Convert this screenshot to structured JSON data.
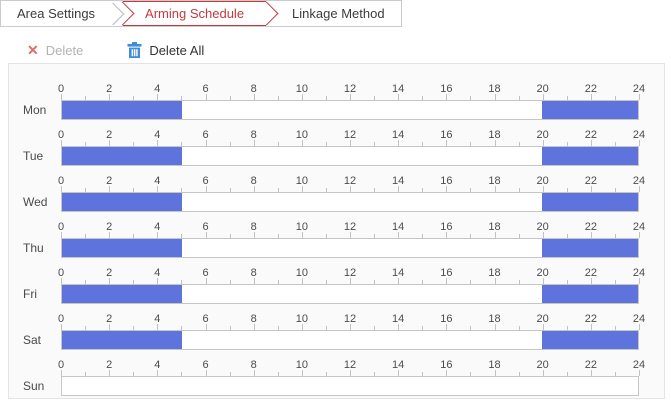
{
  "tabs": {
    "items": [
      {
        "label": "Area Settings",
        "active": false
      },
      {
        "label": "Arming Schedule",
        "active": true
      },
      {
        "label": "Linkage Method",
        "active": false
      }
    ]
  },
  "toolbar": {
    "delete": {
      "label": "Delete",
      "enabled": false
    },
    "delete_all": {
      "label": "Delete All",
      "enabled": true
    }
  },
  "icons": {
    "delete_x": "✕",
    "delete_all_trash": "trash-can"
  },
  "colors": {
    "accent_red": "#c5383e",
    "segment_blue": "#5f73dc",
    "trash_blue": "#3f8ed5",
    "disabled_text": "#b3b3b3"
  },
  "schedule": {
    "hours_total": 24,
    "labeled_hours": [
      0,
      2,
      4,
      6,
      8,
      10,
      12,
      14,
      16,
      18,
      20,
      22,
      24
    ],
    "days": [
      {
        "label": "Mon",
        "segments": [
          [
            0,
            5
          ],
          [
            20,
            24
          ]
        ]
      },
      {
        "label": "Tue",
        "segments": [
          [
            0,
            5
          ],
          [
            20,
            24
          ]
        ]
      },
      {
        "label": "Wed",
        "segments": [
          [
            0,
            5
          ],
          [
            20,
            24
          ]
        ]
      },
      {
        "label": "Thu",
        "segments": [
          [
            0,
            5
          ],
          [
            20,
            24
          ]
        ]
      },
      {
        "label": "Fri",
        "segments": [
          [
            0,
            5
          ],
          [
            20,
            24
          ]
        ]
      },
      {
        "label": "Sat",
        "segments": [
          [
            0,
            5
          ],
          [
            20,
            24
          ]
        ]
      },
      {
        "label": "Sun",
        "segments": []
      }
    ]
  }
}
